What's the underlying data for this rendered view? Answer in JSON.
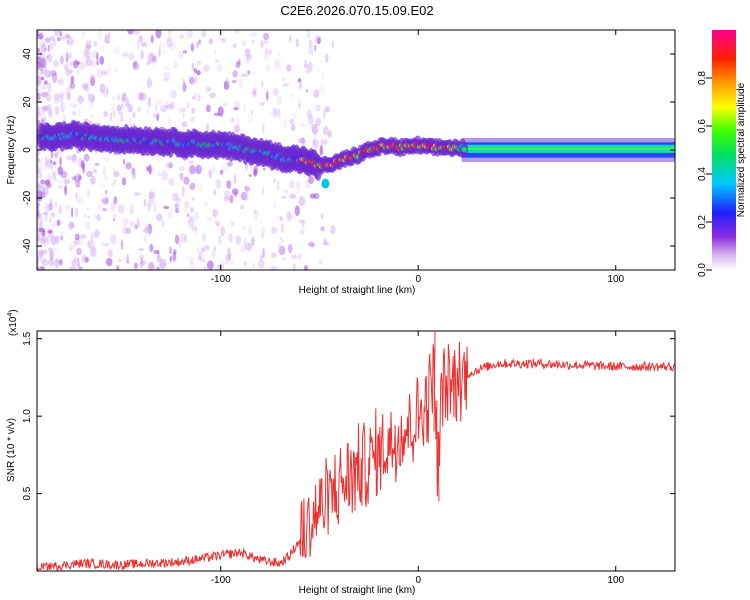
{
  "title": "C2E6.2026.070.15.09.E02",
  "chart_data": [
    {
      "type": "heatmap",
      "xlabel": "Height of straight line (km)",
      "ylabel": "Frequency (Hz)",
      "xlim": [
        -193,
        130
      ],
      "ylim": [
        -50,
        50
      ],
      "x_ticks": [
        -100,
        0,
        100
      ],
      "y_ticks": [
        -40,
        -20,
        0,
        20,
        40
      ],
      "colorbar": {
        "label": "Normalized spectral amplitude",
        "range": [
          0.0,
          1.0
        ],
        "ticks": [
          "0.0",
          "0.2",
          "0.4",
          "0.6",
          "0.8"
        ]
      },
      "ridge": {
        "x": [
          -193,
          -175,
          -160,
          -140,
          -120,
          -100,
          -85,
          -70,
          -60,
          -55,
          -50,
          -45,
          -40,
          -35,
          -30,
          -25,
          -20,
          -15,
          -10,
          -5,
          0,
          5,
          10,
          15,
          20,
          30,
          60,
          100,
          130
        ],
        "freq": [
          5,
          6,
          5,
          4,
          3,
          2,
          0,
          -3,
          -4,
          -5,
          -7,
          -6,
          -5,
          -3,
          -2,
          0,
          1,
          2,
          1,
          1,
          2,
          1,
          1,
          1,
          1,
          0,
          0,
          0,
          0
        ]
      }
    },
    {
      "type": "line",
      "xlabel": "Height of straight line (km)",
      "ylabel": "SNR (10 * v/v)",
      "y_scale_note": "(x10",
      "y_scale_exp": "4",
      "xlim": [
        -193,
        130
      ],
      "ylim": [
        0,
        1.55
      ],
      "x_ticks": [
        -100,
        0,
        100
      ],
      "y_ticks": [
        0.5,
        1.0,
        1.5
      ],
      "series": [
        {
          "name": "SNR",
          "color": "#ee3030",
          "x": [
            -193,
            -170,
            -150,
            -120,
            -100,
            -90,
            -80,
            -70,
            -65,
            -60,
            -55,
            -50,
            -45,
            -40,
            -35,
            -30,
            -25,
            -20,
            -15,
            -10,
            -5,
            0,
            5,
            8,
            10,
            12,
            15,
            20,
            25,
            30,
            35,
            40,
            60,
            80,
            100,
            130
          ],
          "y": [
            0.02,
            0.05,
            0.04,
            0.06,
            0.1,
            0.12,
            0.07,
            0.05,
            0.1,
            0.2,
            0.3,
            0.4,
            0.47,
            0.55,
            0.6,
            0.66,
            0.7,
            0.76,
            0.82,
            0.88,
            0.94,
            1.0,
            1.1,
            1.3,
            0.6,
            1.2,
            1.18,
            1.22,
            1.27,
            1.3,
            1.32,
            1.34,
            1.34,
            1.33,
            1.32,
            1.32
          ]
        }
      ]
    }
  ]
}
